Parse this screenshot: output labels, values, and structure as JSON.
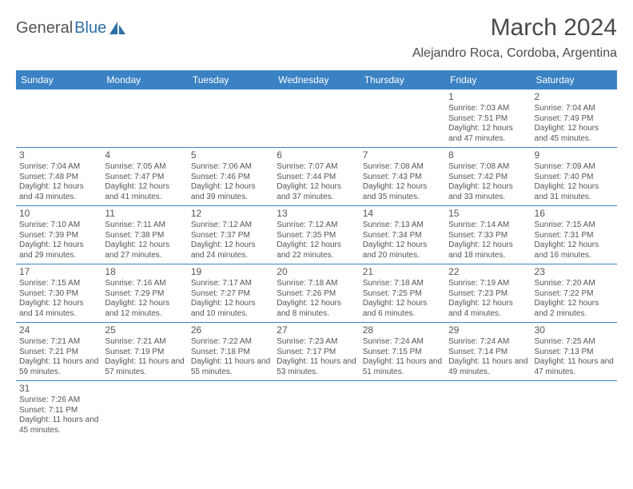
{
  "brand": {
    "general": "General",
    "blue": "Blue"
  },
  "title": "March 2024",
  "location": "Alejandro Roca, Cordoba, Argentina",
  "colors": {
    "header_bg": "#3b82c4",
    "header_fg": "#ffffff",
    "border": "#3b82c4",
    "text": "#4a4a4a",
    "brand_blue": "#2f6fa7"
  },
  "day_headers": [
    "Sunday",
    "Monday",
    "Tuesday",
    "Wednesday",
    "Thursday",
    "Friday",
    "Saturday"
  ],
  "weeks": [
    [
      null,
      null,
      null,
      null,
      null,
      {
        "n": "1",
        "sr": "7:03 AM",
        "ss": "7:51 PM",
        "dl": "12 hours and 47 minutes."
      },
      {
        "n": "2",
        "sr": "7:04 AM",
        "ss": "7:49 PM",
        "dl": "12 hours and 45 minutes."
      }
    ],
    [
      {
        "n": "3",
        "sr": "7:04 AM",
        "ss": "7:48 PM",
        "dl": "12 hours and 43 minutes."
      },
      {
        "n": "4",
        "sr": "7:05 AM",
        "ss": "7:47 PM",
        "dl": "12 hours and 41 minutes."
      },
      {
        "n": "5",
        "sr": "7:06 AM",
        "ss": "7:46 PM",
        "dl": "12 hours and 39 minutes."
      },
      {
        "n": "6",
        "sr": "7:07 AM",
        "ss": "7:44 PM",
        "dl": "12 hours and 37 minutes."
      },
      {
        "n": "7",
        "sr": "7:08 AM",
        "ss": "7:43 PM",
        "dl": "12 hours and 35 minutes."
      },
      {
        "n": "8",
        "sr": "7:08 AM",
        "ss": "7:42 PM",
        "dl": "12 hours and 33 minutes."
      },
      {
        "n": "9",
        "sr": "7:09 AM",
        "ss": "7:40 PM",
        "dl": "12 hours and 31 minutes."
      }
    ],
    [
      {
        "n": "10",
        "sr": "7:10 AM",
        "ss": "7:39 PM",
        "dl": "12 hours and 29 minutes."
      },
      {
        "n": "11",
        "sr": "7:11 AM",
        "ss": "7:38 PM",
        "dl": "12 hours and 27 minutes."
      },
      {
        "n": "12",
        "sr": "7:12 AM",
        "ss": "7:37 PM",
        "dl": "12 hours and 24 minutes."
      },
      {
        "n": "13",
        "sr": "7:12 AM",
        "ss": "7:35 PM",
        "dl": "12 hours and 22 minutes."
      },
      {
        "n": "14",
        "sr": "7:13 AM",
        "ss": "7:34 PM",
        "dl": "12 hours and 20 minutes."
      },
      {
        "n": "15",
        "sr": "7:14 AM",
        "ss": "7:33 PM",
        "dl": "12 hours and 18 minutes."
      },
      {
        "n": "16",
        "sr": "7:15 AM",
        "ss": "7:31 PM",
        "dl": "12 hours and 16 minutes."
      }
    ],
    [
      {
        "n": "17",
        "sr": "7:15 AM",
        "ss": "7:30 PM",
        "dl": "12 hours and 14 minutes."
      },
      {
        "n": "18",
        "sr": "7:16 AM",
        "ss": "7:29 PM",
        "dl": "12 hours and 12 minutes."
      },
      {
        "n": "19",
        "sr": "7:17 AM",
        "ss": "7:27 PM",
        "dl": "12 hours and 10 minutes."
      },
      {
        "n": "20",
        "sr": "7:18 AM",
        "ss": "7:26 PM",
        "dl": "12 hours and 8 minutes."
      },
      {
        "n": "21",
        "sr": "7:18 AM",
        "ss": "7:25 PM",
        "dl": "12 hours and 6 minutes."
      },
      {
        "n": "22",
        "sr": "7:19 AM",
        "ss": "7:23 PM",
        "dl": "12 hours and 4 minutes."
      },
      {
        "n": "23",
        "sr": "7:20 AM",
        "ss": "7:22 PM",
        "dl": "12 hours and 2 minutes."
      }
    ],
    [
      {
        "n": "24",
        "sr": "7:21 AM",
        "ss": "7:21 PM",
        "dl": "11 hours and 59 minutes."
      },
      {
        "n": "25",
        "sr": "7:21 AM",
        "ss": "7:19 PM",
        "dl": "11 hours and 57 minutes."
      },
      {
        "n": "26",
        "sr": "7:22 AM",
        "ss": "7:18 PM",
        "dl": "11 hours and 55 minutes."
      },
      {
        "n": "27",
        "sr": "7:23 AM",
        "ss": "7:17 PM",
        "dl": "11 hours and 53 minutes."
      },
      {
        "n": "28",
        "sr": "7:24 AM",
        "ss": "7:15 PM",
        "dl": "11 hours and 51 minutes."
      },
      {
        "n": "29",
        "sr": "7:24 AM",
        "ss": "7:14 PM",
        "dl": "11 hours and 49 minutes."
      },
      {
        "n": "30",
        "sr": "7:25 AM",
        "ss": "7:13 PM",
        "dl": "11 hours and 47 minutes."
      }
    ],
    [
      {
        "n": "31",
        "sr": "7:26 AM",
        "ss": "7:11 PM",
        "dl": "11 hours and 45 minutes."
      },
      null,
      null,
      null,
      null,
      null,
      null
    ]
  ],
  "labels": {
    "sunrise": "Sunrise: ",
    "sunset": "Sunset: ",
    "daylight": "Daylight: "
  }
}
